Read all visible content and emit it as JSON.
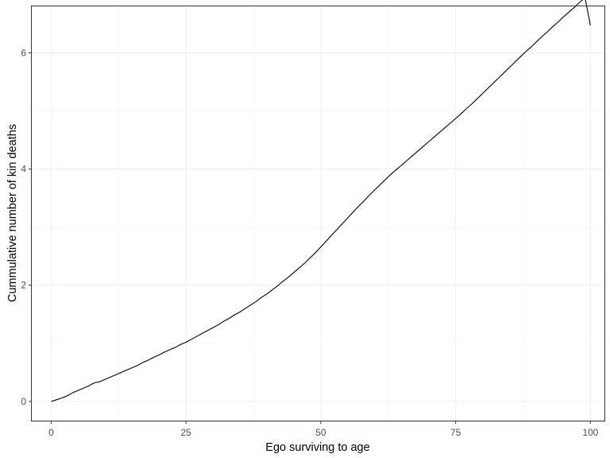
{
  "chart_data": {
    "type": "line",
    "title": "",
    "xlabel": "Ego surviving to age",
    "ylabel": "Cummulative number of kin deaths",
    "xlim": [
      -3.6,
      102.6
    ],
    "ylim": [
      -0.33,
      6.8
    ],
    "x_ticks": [
      0,
      25,
      50,
      75,
      100
    ],
    "x_tick_labels": [
      "0",
      "25",
      "50",
      "75",
      "100"
    ],
    "y_ticks": [
      0,
      2,
      4,
      6
    ],
    "y_tick_labels": [
      "0",
      "2",
      "4",
      "6"
    ],
    "grid": true,
    "legend": "none",
    "series": [
      {
        "color": "#000000",
        "x": [
          0,
          1,
          2,
          3,
          4,
          5,
          6,
          7,
          8,
          9,
          10,
          11,
          12,
          13,
          14,
          15,
          16,
          17,
          18,
          19,
          20,
          21,
          22,
          23,
          24,
          25,
          26,
          27,
          28,
          29,
          30,
          31,
          32,
          33,
          34,
          35,
          36,
          37,
          38,
          39,
          40,
          41,
          42,
          43,
          44,
          45,
          46,
          47,
          48,
          49,
          50,
          51,
          52,
          53,
          54,
          55,
          56,
          57,
          58,
          59,
          60,
          61,
          62,
          63,
          64,
          65,
          66,
          67,
          68,
          69,
          70,
          71,
          72,
          73,
          74,
          75,
          76,
          77,
          78,
          79,
          80,
          81,
          82,
          83,
          84,
          85,
          86,
          87,
          88,
          89,
          90,
          91,
          92,
          93,
          94,
          95,
          96,
          97,
          98,
          99,
          100
        ],
        "values": [
          0.0,
          0.03,
          0.06,
          0.1,
          0.15,
          0.19,
          0.23,
          0.27,
          0.32,
          0.34,
          0.38,
          0.42,
          0.46,
          0.5,
          0.54,
          0.58,
          0.62,
          0.67,
          0.71,
          0.76,
          0.8,
          0.85,
          0.89,
          0.93,
          0.98,
          1.02,
          1.07,
          1.12,
          1.17,
          1.22,
          1.27,
          1.32,
          1.38,
          1.43,
          1.49,
          1.54,
          1.6,
          1.66,
          1.72,
          1.79,
          1.85,
          1.92,
          1.99,
          2.07,
          2.14,
          2.22,
          2.3,
          2.38,
          2.47,
          2.56,
          2.66,
          2.76,
          2.86,
          2.96,
          3.06,
          3.16,
          3.26,
          3.36,
          3.45,
          3.55,
          3.64,
          3.73,
          3.82,
          3.91,
          3.99,
          4.07,
          4.15,
          4.23,
          4.31,
          4.39,
          4.47,
          4.55,
          4.63,
          4.71,
          4.79,
          4.87,
          4.95,
          5.04,
          5.12,
          5.21,
          5.3,
          5.39,
          5.48,
          5.57,
          5.66,
          5.75,
          5.84,
          5.93,
          6.02,
          6.1,
          6.19,
          6.28,
          6.36,
          6.45,
          6.53,
          6.62,
          6.7,
          6.78,
          6.87,
          6.95,
          6.47
        ]
      }
    ]
  }
}
